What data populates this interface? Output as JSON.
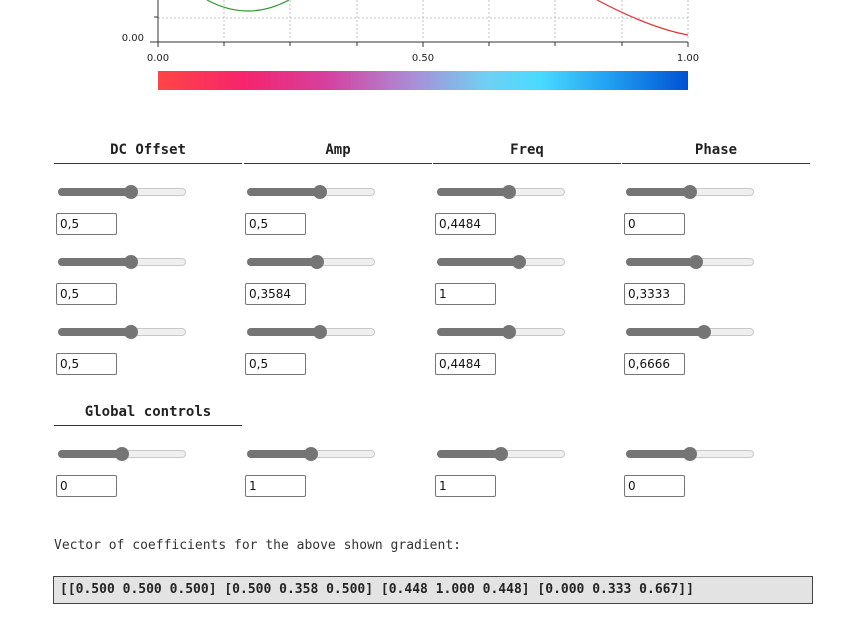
{
  "plot": {
    "y_tick_label": "0.00",
    "x_tick_labels": [
      "0.00",
      "0.50",
      "1.00"
    ],
    "colors": {
      "green": "#2e9a2e",
      "red": "#e8322e",
      "axis": "#333333",
      "grid": "#bdbdbd"
    }
  },
  "gradient": {
    "stops": [
      "#ff4545",
      "#f7246c",
      "#d6409f",
      "#a98ed6",
      "#6fd0f3",
      "#49dbff",
      "#1f9bf0",
      "#0052d4"
    ]
  },
  "columns": [
    {
      "label": "DC Offset",
      "rows": [
        {
          "slider": 0.57,
          "value": "0,5"
        },
        {
          "slider": 0.57,
          "value": "0,5"
        },
        {
          "slider": 0.57,
          "value": "0,5"
        }
      ]
    },
    {
      "label": "Amp",
      "rows": [
        {
          "slider": 0.57,
          "value": "0,5"
        },
        {
          "slider": 0.55,
          "value": "0,3584"
        },
        {
          "slider": 0.57,
          "value": "0,5"
        }
      ]
    },
    {
      "label": "Freq",
      "rows": [
        {
          "slider": 0.56,
          "value": "0,4484"
        },
        {
          "slider": 0.64,
          "value": "1"
        },
        {
          "slider": 0.56,
          "value": "0,4484"
        }
      ]
    },
    {
      "label": "Phase",
      "rows": [
        {
          "slider": 0.5,
          "value": "0"
        },
        {
          "slider": 0.55,
          "value": "0,3333"
        },
        {
          "slider": 0.61,
          "value": "0,6666"
        }
      ]
    }
  ],
  "global": {
    "label": "Global controls",
    "controls": [
      {
        "slider": 0.5,
        "value": "0"
      },
      {
        "slider": 0.5,
        "value": "1"
      },
      {
        "slider": 0.5,
        "value": "1"
      },
      {
        "slider": 0.5,
        "value": "0"
      }
    ]
  },
  "vector": {
    "caption": "Vector of coefficients for the above shown gradient:",
    "text": "[[0.500 0.500 0.500] [0.500 0.358 0.500] [0.448 1.000 0.448] [0.000 0.333 0.667]]"
  }
}
